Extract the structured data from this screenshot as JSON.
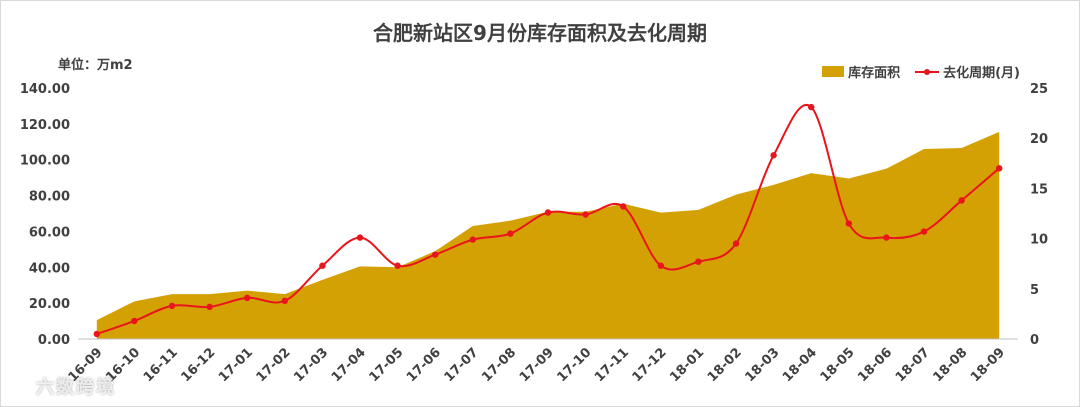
{
  "chart_data": {
    "type": "area+line",
    "title": "合肥新站区9月份库存面积及去化周期",
    "unit_label": "单位：万m2",
    "categories": [
      "16-09",
      "16-10",
      "16-11",
      "16-12",
      "17-01",
      "17-02",
      "17-03",
      "17-04",
      "17-05",
      "17-06",
      "17-07",
      "17-08",
      "17-09",
      "17-10",
      "17-11",
      "17-12",
      "18-01",
      "18-02",
      "18-03",
      "18-04",
      "18-05",
      "18-06",
      "18-07",
      "18-08",
      "18-09"
    ],
    "series": [
      {
        "name": "库存面积",
        "kind": "area",
        "axis": "left",
        "color": "#d4a105",
        "values": [
          10.5,
          21,
          25,
          25,
          27,
          25,
          33,
          40.5,
          40,
          49,
          63,
          66,
          71,
          71,
          75.5,
          70.5,
          72,
          80.5,
          86,
          92.5,
          89.5,
          95,
          106,
          106.5,
          115.5
        ]
      },
      {
        "name": "去化周期(月)",
        "kind": "line",
        "axis": "right",
        "color": "#e8151b",
        "values": [
          0.5,
          1.8,
          3.3,
          3.2,
          4.1,
          3.8,
          7.3,
          10.1,
          7.3,
          8.4,
          9.9,
          10.5,
          12.6,
          12.4,
          13.2,
          7.3,
          7.7,
          9.5,
          18.3,
          23.1,
          11.5,
          10.1,
          10.7,
          13.8,
          17
        ]
      }
    ],
    "y_left": {
      "min": 0,
      "max": 140,
      "ticks": [
        "0.00",
        "20.00",
        "40.00",
        "60.00",
        "80.00",
        "100.00",
        "120.00",
        "140.00"
      ]
    },
    "y_right": {
      "min": 0,
      "max": 25,
      "ticks": [
        "0",
        "5",
        "10",
        "15",
        "20",
        "25"
      ]
    },
    "grid": false,
    "legend_position": "top-right"
  },
  "watermark": "六数跨境",
  "colors": {
    "area": "#d4a105",
    "line": "#e8151b",
    "text": "#404040"
  }
}
